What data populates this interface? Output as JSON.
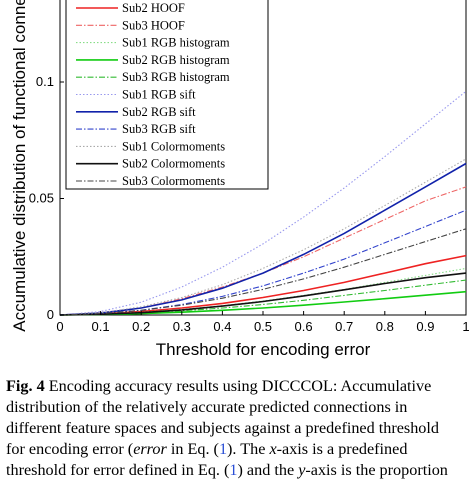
{
  "chart_data": {
    "type": "line",
    "xlabel": "Threshold for encoding error",
    "ylabel": "Accumulative distribution of functional conne",
    "xlim": [
      0,
      1
    ],
    "ylim": [
      0,
      0.1
    ],
    "xticks": [
      "0",
      "0.1",
      "0.2",
      "0.3",
      "0.4",
      "0.5",
      "0.6",
      "0.7",
      "0.8",
      "0.9",
      "1"
    ],
    "yticks": [
      "0",
      "0.05",
      "0.1"
    ],
    "legend_placement": "top-left",
    "grid": false,
    "x": [
      0,
      0.1,
      0.2,
      0.3,
      0.4,
      0.5,
      0.6,
      0.7,
      0.8,
      0.9,
      1.0
    ],
    "series": [
      {
        "name": "Sub2 HOOF",
        "color": "#ee2222",
        "style": "solid",
        "values": [
          0,
          0.0005,
          0.0015,
          0.003,
          0.005,
          0.0075,
          0.0105,
          0.014,
          0.018,
          0.022,
          0.0255
        ]
      },
      {
        "name": "Sub3 HOOF",
        "color": "#ee6666",
        "style": "dashdot",
        "values": [
          0,
          0.001,
          0.003,
          0.007,
          0.012,
          0.018,
          0.025,
          0.033,
          0.041,
          0.049,
          0.055
        ]
      },
      {
        "name": "Sub1 RGB histogram",
        "color": "#88dd88",
        "style": "dotted",
        "values": [
          0,
          0.0004,
          0.0012,
          0.0024,
          0.004,
          0.006,
          0.0084,
          0.011,
          0.014,
          0.017,
          0.02
        ]
      },
      {
        "name": "Sub2 RGB histogram",
        "color": "#11cc11",
        "style": "solid",
        "values": [
          0,
          0.0002,
          0.0006,
          0.0012,
          0.002,
          0.003,
          0.0042,
          0.0056,
          0.007,
          0.0085,
          0.01
        ]
      },
      {
        "name": "Sub3 RGB histogram",
        "color": "#33bb33",
        "style": "dashdot",
        "values": [
          0,
          0.0003,
          0.0009,
          0.0018,
          0.003,
          0.0045,
          0.0063,
          0.0084,
          0.0105,
          0.0128,
          0.015
        ]
      },
      {
        "name": "Sub1 RGB sift",
        "color": "#9999ee",
        "style": "dotted",
        "values": [
          0,
          0.0015,
          0.0055,
          0.012,
          0.0205,
          0.0305,
          0.042,
          0.0545,
          0.068,
          0.082,
          0.096
        ]
      },
      {
        "name": "Sub2 RGB sift",
        "color": "#1122aa",
        "style": "solid",
        "values": [
          0,
          0.0008,
          0.003,
          0.0065,
          0.0115,
          0.018,
          0.026,
          0.035,
          0.045,
          0.055,
          0.065
        ]
      },
      {
        "name": "Sub3 RGB sift",
        "color": "#3344cc",
        "style": "dashdot",
        "values": [
          0,
          0.0006,
          0.002,
          0.0045,
          0.008,
          0.0125,
          0.018,
          0.024,
          0.031,
          0.038,
          0.045
        ]
      },
      {
        "name": "Sub1 Colormoments",
        "color": "#aaaaaa",
        "style": "dotted",
        "values": [
          0,
          0.001,
          0.0035,
          0.0075,
          0.013,
          0.02,
          0.028,
          0.037,
          0.047,
          0.057,
          0.067
        ]
      },
      {
        "name": "Sub2 Colormoments",
        "color": "#111111",
        "style": "solid",
        "values": [
          0,
          0.0003,
          0.001,
          0.0022,
          0.0038,
          0.0058,
          0.0082,
          0.0108,
          0.0135,
          0.016,
          0.018
        ]
      },
      {
        "name": "Sub3 Colormoments",
        "color": "#444444",
        "style": "dashdot",
        "values": [
          0,
          0.0006,
          0.002,
          0.0042,
          0.0072,
          0.011,
          0.0155,
          0.0205,
          0.026,
          0.0315,
          0.037
        ]
      }
    ]
  },
  "caption": {
    "lines": [
      [
        {
          "t": "Fig. 4",
          "b": true
        },
        {
          "t": "  Encoding accuracy results using DICCCOL: Accumulative"
        }
      ],
      [
        {
          "t": "distribution of the relatively accurate predicted connections in"
        }
      ],
      [
        {
          "t": "different feature spaces and subjects against a predefined threshold"
        }
      ],
      [
        {
          "t": "for encoding error ("
        },
        {
          "t": "error",
          "i": true
        },
        {
          "t": " in Eq. ("
        },
        {
          "t": "1",
          "ref": true
        },
        {
          "t": "). The "
        },
        {
          "t": "x",
          "i": true
        },
        {
          "t": "-axis is a predefined"
        }
      ],
      [
        {
          "t": "threshold for error defined in Eq. ("
        },
        {
          "t": "1",
          "ref": true
        },
        {
          "t": ") and the "
        },
        {
          "t": "y",
          "i": true
        },
        {
          "t": "-axis is the proportion"
        }
      ]
    ]
  }
}
